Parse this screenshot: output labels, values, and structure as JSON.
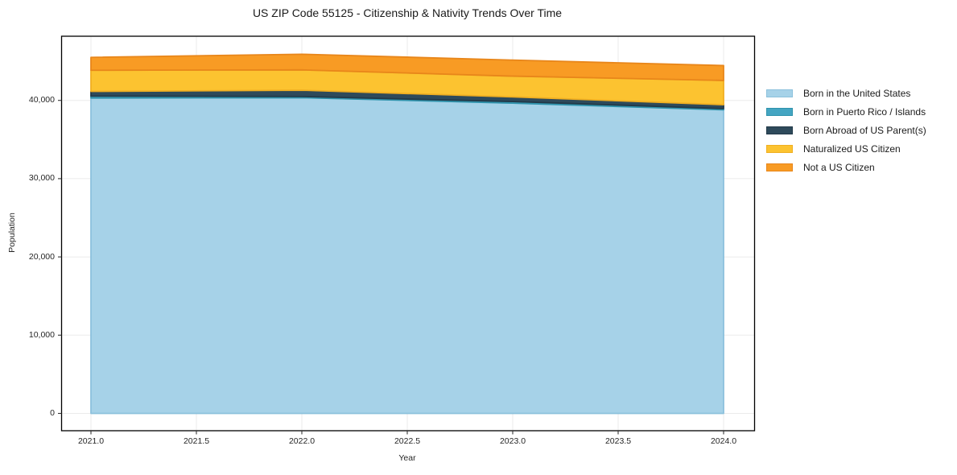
{
  "title": "US ZIP Code 55125 - Citizenship & Nativity Trends Over Time",
  "axes": {
    "xlabel": "Year",
    "ylabel": "Population",
    "x_ticks": [
      {
        "label": "2021.0",
        "value": 2021.0
      },
      {
        "label": "2021.5",
        "value": 2021.5
      },
      {
        "label": "2022.0",
        "value": 2022.0
      },
      {
        "label": "2022.5",
        "value": 2022.5
      },
      {
        "label": "2023.0",
        "value": 2023.0
      },
      {
        "label": "2023.5",
        "value": 2023.5
      },
      {
        "label": "2024.0",
        "value": 2024.0
      }
    ],
    "y_ticks": [
      {
        "label": "0",
        "value": 0
      },
      {
        "label": "10,000",
        "value": 10000
      },
      {
        "label": "20,000",
        "value": 20000
      },
      {
        "label": "30,000",
        "value": 30000
      },
      {
        "label": "40,000",
        "value": 40000
      }
    ]
  },
  "legend": {
    "position": "outside-right-top",
    "frame": false,
    "entries": [
      "Born in the United States",
      "Born in Puerto Rico / Islands",
      "Born Abroad of US Parent(s)",
      "Naturalized US Citizen",
      "Not a US Citizen"
    ]
  },
  "chart_data": {
    "type": "area",
    "stacked": true,
    "title": "US ZIP Code 55125 - Citizenship & Nativity Trends Over Time",
    "xlabel": "Year",
    "ylabel": "Population",
    "x": [
      2021,
      2022,
      2023,
      2024
    ],
    "series": [
      {
        "name": "Born in the United States",
        "color": "#A6D2E8",
        "edge": "#8CC1DC",
        "values": [
          40300,
          40350,
          39650,
          38800
        ]
      },
      {
        "name": "Born in Puerto Rico / Islands",
        "color": "#44A5C2",
        "edge": "#2F93AC",
        "values": [
          250,
          150,
          200,
          150
        ]
      },
      {
        "name": "Born Abroad of US Parent(s)",
        "color": "#2E4A5B",
        "edge": "#223948",
        "values": [
          600,
          800,
          600,
          500
        ]
      },
      {
        "name": "Naturalized US Citizen",
        "color": "#FCC330",
        "edge": "#F0AF22",
        "values": [
          2700,
          2600,
          2650,
          3100
        ]
      },
      {
        "name": "Not a US Citizen",
        "color": "#F89B24",
        "edge": "#E8861A",
        "values": [
          1650,
          2000,
          2050,
          1900
        ]
      }
    ],
    "totals": [
      45500,
      45900,
      45150,
      44450
    ],
    "xlim": [
      2020.86,
      2024.15
    ],
    "ylim": [
      0,
      48200
    ],
    "grid": true,
    "gridline_color": "#ebebeb",
    "background_color": "#ffffff"
  }
}
